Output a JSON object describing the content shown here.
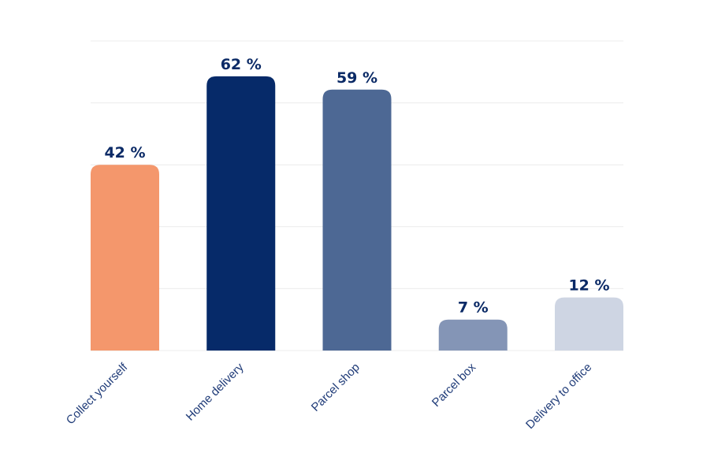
{
  "chart_data": {
    "type": "bar",
    "categories": [
      "Collect yourself",
      "Home delivery",
      "Parcel shop",
      "Parcel box",
      "Delivery to office"
    ],
    "values": [
      42,
      62,
      59,
      7,
      12
    ],
    "value_labels": [
      "42 %",
      "62 %",
      "59 %",
      "7 %",
      "12 %"
    ],
    "colors": [
      "#f4976c",
      "#062a69",
      "#4d6894",
      "#8495b6",
      "#ced5e3"
    ],
    "label_color": "#0b2a66",
    "ylim": [
      0,
      70
    ],
    "grid": true,
    "title": "",
    "xlabel": "",
    "ylabel": ""
  }
}
